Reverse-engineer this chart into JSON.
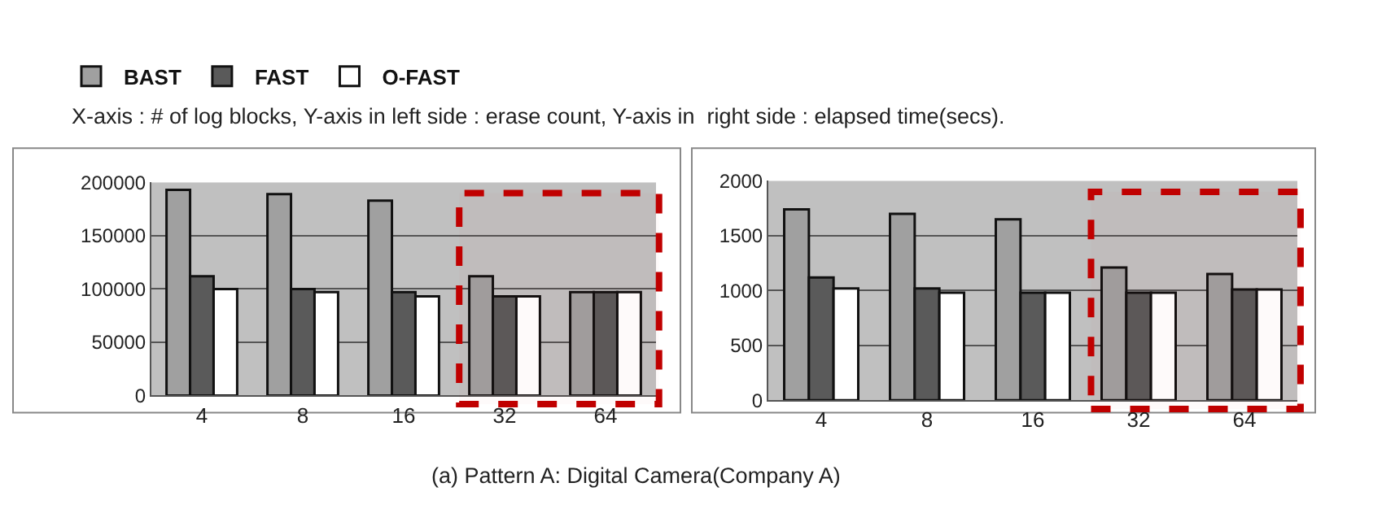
{
  "chart_data": [
    {
      "type": "bar",
      "subtitle": "X-axis : # of log blocks, Y-axis in left side : erase count, Y-axis in  right side : elapsed time(secs).",
      "categories": [
        "4",
        "8",
        "16",
        "32",
        "64"
      ],
      "series": [
        {
          "name": "BAST",
          "color": "#a0a0a0",
          "values": [
            193000,
            189000,
            183000,
            112000,
            97000
          ]
        },
        {
          "name": "FAST",
          "color": "#5a5a5a",
          "values": [
            112000,
            100000,
            97000,
            93000,
            97000
          ]
        },
        {
          "name": "O-FAST",
          "color": "#ffffff",
          "values": [
            100000,
            97000,
            93000,
            93000,
            97000
          ]
        }
      ],
      "ylim": [
        0,
        200000
      ],
      "yticks": [
        0,
        50000,
        100000,
        150000,
        200000
      ],
      "grid": "y",
      "legend": "top left",
      "bands": [
        {
          "axis": "x",
          "from": "32",
          "to": "64",
          "color": "#c00000"
        }
      ],
      "annotations": [
        "(a) Pattern A: Digital Camera(Company A)"
      ]
    },
    {
      "type": "bar",
      "categories": [
        "4",
        "8",
        "16",
        "32",
        "64"
      ],
      "series": [
        {
          "color": "#a0a0a0",
          "values": [
            1740,
            1700,
            1650,
            1210,
            1150
          ]
        },
        {
          "color": "#5a5a5a",
          "values": [
            1120,
            1020,
            980,
            980,
            1010
          ]
        },
        {
          "color": "#ffffff",
          "values": [
            1020,
            980,
            980,
            980,
            1010
          ]
        }
      ],
      "ylim": [
        0,
        2000
      ],
      "yticks": [
        0,
        500,
        1000,
        1500,
        2000
      ],
      "grid": "y",
      "bands": [
        {
          "axis": "x",
          "from": "32",
          "to": "64",
          "color": "#c00000"
        }
      ]
    }
  ]
}
